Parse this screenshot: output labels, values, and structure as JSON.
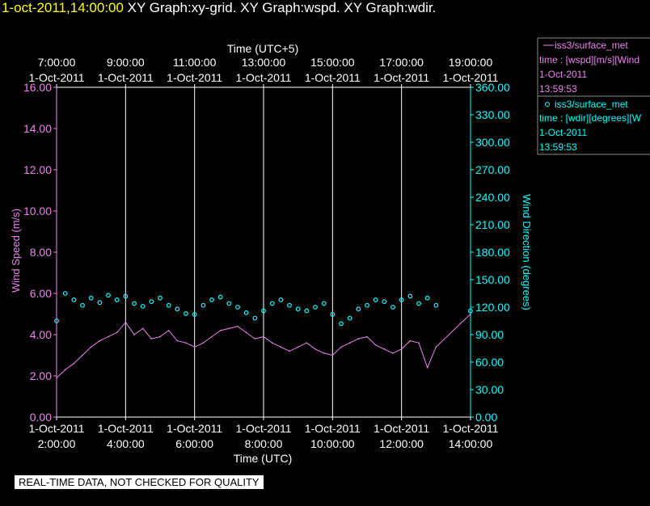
{
  "header": {
    "timestamp": "1-oct-2011,14:00:00",
    "titles": "XY Graph:xy-grid.  XY Graph:wspd.  XY Graph:wdir."
  },
  "colors": {
    "wspd": "#ee82ee",
    "wdir": "#00ffff",
    "axes": "#ffffff",
    "label": "#ffffff"
  },
  "chart_data": {
    "type": "line",
    "top_axis": {
      "title": "Time (UTC+5)",
      "ticks": [
        {
          "t": "7:00:00",
          "d": "1-Oct-2011"
        },
        {
          "t": "9:00:00",
          "d": "1-Oct-2011"
        },
        {
          "t": "11:00:00",
          "d": "1-Oct-2011"
        },
        {
          "t": "13:00:00",
          "d": "1-Oct-2011"
        },
        {
          "t": "15:00:00",
          "d": "1-Oct-2011"
        },
        {
          "t": "17:00:00",
          "d": "1-Oct-2011"
        },
        {
          "t": "19:00:00",
          "d": "1-Oct-2011"
        }
      ]
    },
    "bottom_axis": {
      "title": "Time (UTC)",
      "ticks": [
        {
          "d": "1-Oct-2011",
          "t": "2:00:00"
        },
        {
          "d": "1-Oct-2011",
          "t": "4:00:00"
        },
        {
          "d": "1-Oct-2011",
          "t": "6:00:00"
        },
        {
          "d": "1-Oct-2011",
          "t": "8:00:00"
        },
        {
          "d": "1-Oct-2011",
          "t": "10:00:00"
        },
        {
          "d": "1-Oct-2011",
          "t": "12:00:00"
        },
        {
          "d": "1-Oct-2011",
          "t": "14:00:00"
        }
      ]
    },
    "xlim": [
      "2011-10-01T02:00:00Z",
      "2011-10-01T14:00:00Z"
    ],
    "x_grid": true,
    "left_axis": {
      "label": "Wind  Speed  (m/s)",
      "ylim": [
        0,
        16
      ],
      "ticks": [
        "0.00",
        "2.00",
        "4.00",
        "6.00",
        "8.00",
        "10.00",
        "12.00",
        "14.00",
        "16.00"
      ]
    },
    "right_axis": {
      "label": "Wind  Direction  (degrees)",
      "ylim": [
        0,
        360
      ],
      "ticks": [
        "0.00",
        "30.00",
        "60.00",
        "90.00",
        "120.00",
        "150.00",
        "180.00",
        "210.00",
        "240.00",
        "270.00",
        "300.00",
        "330.00",
        "360.00"
      ]
    },
    "legend": [
      {
        "marker": "line",
        "name": "iss3/surface_met",
        "var": "time : [wspd][m/s][Wind",
        "date": "1-Oct-2011",
        "time": "13:59:53"
      },
      {
        "marker": "circle",
        "name": "iss3/surface_met",
        "var": "time : [wdir][degrees][W",
        "date": "1-Oct-2011",
        "time": "13:59:53"
      }
    ],
    "series": [
      {
        "name": "iss3/surface_met",
        "var": "wspd",
        "type": "line",
        "x": [
          "2011-10-01T02:00:00Z",
          "2011-10-01T02:15:00Z",
          "2011-10-01T02:30:00Z",
          "2011-10-01T02:45:00Z",
          "2011-10-01T03:00:00Z",
          "2011-10-01T03:15:00Z",
          "2011-10-01T03:30:00Z",
          "2011-10-01T03:45:00Z",
          "2011-10-01T04:00:00Z",
          "2011-10-01T04:15:00Z",
          "2011-10-01T04:30:00Z",
          "2011-10-01T04:45:00Z",
          "2011-10-01T05:00:00Z",
          "2011-10-01T05:15:00Z",
          "2011-10-01T05:30:00Z",
          "2011-10-01T05:45:00Z",
          "2011-10-01T06:00:00Z",
          "2011-10-01T06:15:00Z",
          "2011-10-01T06:30:00Z",
          "2011-10-01T06:45:00Z",
          "2011-10-01T07:00:00Z",
          "2011-10-01T07:15:00Z",
          "2011-10-01T07:30:00Z",
          "2011-10-01T07:45:00Z",
          "2011-10-01T08:00:00Z",
          "2011-10-01T08:15:00Z",
          "2011-10-01T08:30:00Z",
          "2011-10-01T08:45:00Z",
          "2011-10-01T09:00:00Z",
          "2011-10-01T09:15:00Z",
          "2011-10-01T09:30:00Z",
          "2011-10-01T09:45:00Z",
          "2011-10-01T10:00:00Z",
          "2011-10-01T10:15:00Z",
          "2011-10-01T10:30:00Z",
          "2011-10-01T10:45:00Z",
          "2011-10-01T11:00:00Z",
          "2011-10-01T11:15:00Z",
          "2011-10-01T11:30:00Z",
          "2011-10-01T11:45:00Z",
          "2011-10-01T12:00:00Z",
          "2011-10-01T12:15:00Z",
          "2011-10-01T12:30:00Z",
          "2011-10-01T12:45:00Z",
          "2011-10-01T13:00:00Z",
          "2011-10-01T13:59:53Z"
        ],
        "y": [
          1.9,
          2.3,
          2.6,
          3.0,
          3.4,
          3.7,
          3.9,
          4.1,
          4.6,
          4.0,
          4.3,
          3.8,
          3.9,
          4.2,
          3.7,
          3.6,
          3.4,
          3.6,
          3.9,
          4.2,
          4.3,
          4.4,
          4.1,
          3.8,
          3.9,
          3.6,
          3.4,
          3.2,
          3.4,
          3.6,
          3.3,
          3.1,
          3.0,
          3.4,
          3.6,
          3.8,
          3.9,
          3.5,
          3.3,
          3.1,
          3.3,
          3.7,
          3.6,
          2.4,
          3.4,
          5.0
        ]
      },
      {
        "name": "iss3/surface_met",
        "var": "wdir",
        "type": "scatter",
        "x": [
          "2011-10-01T02:00:00Z",
          "2011-10-01T02:15:00Z",
          "2011-10-01T02:30:00Z",
          "2011-10-01T02:45:00Z",
          "2011-10-01T03:00:00Z",
          "2011-10-01T03:15:00Z",
          "2011-10-01T03:30:00Z",
          "2011-10-01T03:45:00Z",
          "2011-10-01T04:00:00Z",
          "2011-10-01T04:15:00Z",
          "2011-10-01T04:30:00Z",
          "2011-10-01T04:45:00Z",
          "2011-10-01T05:00:00Z",
          "2011-10-01T05:15:00Z",
          "2011-10-01T05:30:00Z",
          "2011-10-01T05:45:00Z",
          "2011-10-01T06:00:00Z",
          "2011-10-01T06:15:00Z",
          "2011-10-01T06:30:00Z",
          "2011-10-01T06:45:00Z",
          "2011-10-01T07:00:00Z",
          "2011-10-01T07:15:00Z",
          "2011-10-01T07:30:00Z",
          "2011-10-01T07:45:00Z",
          "2011-10-01T08:00:00Z",
          "2011-10-01T08:15:00Z",
          "2011-10-01T08:30:00Z",
          "2011-10-01T08:45:00Z",
          "2011-10-01T09:00:00Z",
          "2011-10-01T09:15:00Z",
          "2011-10-01T09:30:00Z",
          "2011-10-01T09:45:00Z",
          "2011-10-01T10:00:00Z",
          "2011-10-01T10:15:00Z",
          "2011-10-01T10:30:00Z",
          "2011-10-01T10:45:00Z",
          "2011-10-01T11:00:00Z",
          "2011-10-01T11:15:00Z",
          "2011-10-01T11:30:00Z",
          "2011-10-01T11:45:00Z",
          "2011-10-01T12:00:00Z",
          "2011-10-01T12:15:00Z",
          "2011-10-01T12:30:00Z",
          "2011-10-01T12:45:00Z",
          "2011-10-01T13:00:00Z",
          "2011-10-01T13:59:53Z"
        ],
        "y": [
          105,
          135,
          128,
          122,
          130,
          125,
          133,
          128,
          132,
          124,
          121,
          126,
          130,
          122,
          118,
          113,
          112,
          122,
          128,
          131,
          124,
          120,
          114,
          108,
          116,
          124,
          128,
          122,
          118,
          116,
          120,
          124,
          112,
          102,
          108,
          118,
          122,
          128,
          126,
          120,
          128,
          132,
          124,
          130,
          122,
          116
        ]
      }
    ]
  },
  "footer": {
    "banner": "REAL-TIME DATA, NOT CHECKED FOR QUALITY"
  }
}
